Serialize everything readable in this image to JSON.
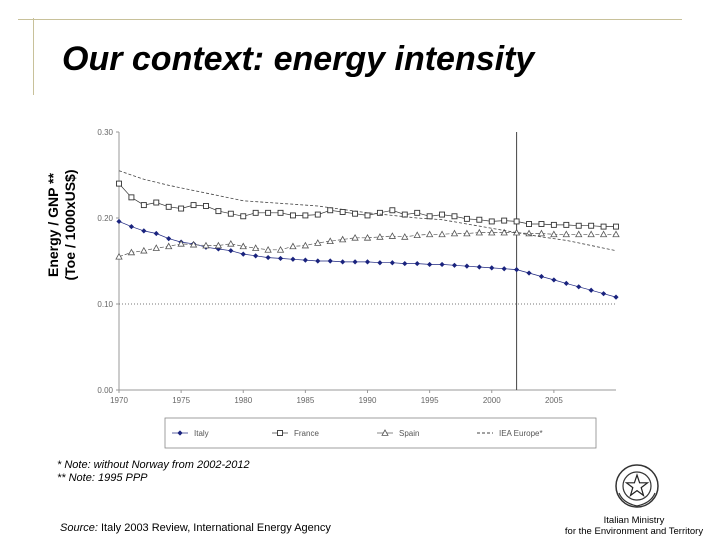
{
  "slide": {
    "title": "Our context: energy intensity",
    "ylabel_line1": "Energy / GNP **",
    "ylabel_line2": "(Toe / 1000xUS$)",
    "note1": "* Note: without Norway from 2002-2012",
    "note2": "** Note: 1995 PPP",
    "source_label": "Source:",
    "source_text": " Italy 2003 Review, International Energy Agency",
    "ministry_line1": "Italian Ministry",
    "ministry_line2": "for the Environment and Territory",
    "emblem_icon": "italian-republic-emblem-icon"
  },
  "chart_data": {
    "type": "line",
    "xlim": [
      1970,
      2010
    ],
    "ylim": [
      0.0,
      0.3
    ],
    "y_ticks": [
      "0.30",
      "0.20",
      "0.10",
      "0.00"
    ],
    "y_tick_values": [
      0.3,
      0.2,
      0.1,
      0.0
    ],
    "x_ticks": [
      "1970",
      "1975",
      "1980",
      "1985",
      "1990",
      "1995",
      "2000",
      "2005"
    ],
    "x_tick_values": [
      1970,
      1975,
      1980,
      1985,
      1990,
      1995,
      2000,
      2005
    ],
    "divider_year": 2002,
    "hline_dotted_at": 0.1,
    "grid": false,
    "legend_position": "bottom",
    "series": [
      {
        "name": "Italy",
        "marker": "diamond-filled",
        "color": "#1a237e",
        "x": [
          1970,
          1971,
          1972,
          1973,
          1974,
          1975,
          1976,
          1977,
          1978,
          1979,
          1980,
          1981,
          1982,
          1983,
          1984,
          1985,
          1986,
          1987,
          1988,
          1989,
          1990,
          1991,
          1992,
          1993,
          1994,
          1995,
          1996,
          1997,
          1998,
          1999,
          2000,
          2001,
          2002,
          2003,
          2004,
          2005,
          2006,
          2007,
          2008,
          2009,
          2010
        ],
        "values": [
          0.196,
          0.19,
          0.185,
          0.182,
          0.176,
          0.172,
          0.17,
          0.166,
          0.164,
          0.162,
          0.158,
          0.156,
          0.154,
          0.153,
          0.152,
          0.151,
          0.15,
          0.15,
          0.149,
          0.149,
          0.149,
          0.148,
          0.148,
          0.147,
          0.147,
          0.146,
          0.146,
          0.145,
          0.144,
          0.143,
          0.142,
          0.141,
          0.14,
          0.136,
          0.132,
          0.128,
          0.124,
          0.12,
          0.116,
          0.112,
          0.108
        ]
      },
      {
        "name": "France",
        "marker": "square-open",
        "color": "#333333",
        "x": [
          1970,
          1971,
          1972,
          1973,
          1974,
          1975,
          1976,
          1977,
          1978,
          1979,
          1980,
          1981,
          1982,
          1983,
          1984,
          1985,
          1986,
          1987,
          1988,
          1989,
          1990,
          1991,
          1992,
          1993,
          1994,
          1995,
          1996,
          1997,
          1998,
          1999,
          2000,
          2001,
          2002,
          2003,
          2004,
          2005,
          2006,
          2007,
          2008,
          2009,
          2010
        ],
        "values": [
          0.24,
          0.224,
          0.215,
          0.218,
          0.213,
          0.211,
          0.215,
          0.214,
          0.208,
          0.205,
          0.202,
          0.206,
          0.206,
          0.206,
          0.203,
          0.203,
          0.204,
          0.209,
          0.207,
          0.205,
          0.203,
          0.206,
          0.209,
          0.204,
          0.206,
          0.202,
          0.204,
          0.202,
          0.199,
          0.198,
          0.196,
          0.197,
          0.196,
          0.193,
          0.193,
          0.192,
          0.192,
          0.191,
          0.191,
          0.19,
          0.19
        ]
      },
      {
        "name": "Spain",
        "marker": "triangle-open",
        "color": "#555555",
        "x": [
          1970,
          1971,
          1972,
          1973,
          1974,
          1975,
          1976,
          1977,
          1978,
          1979,
          1980,
          1981,
          1982,
          1983,
          1984,
          1985,
          1986,
          1987,
          1988,
          1989,
          1990,
          1991,
          1992,
          1993,
          1994,
          1995,
          1996,
          1997,
          1998,
          1999,
          2000,
          2001,
          2002,
          2003,
          2004,
          2005,
          2006,
          2007,
          2008,
          2009,
          2010
        ],
        "values": [
          0.155,
          0.16,
          0.162,
          0.165,
          0.167,
          0.17,
          0.169,
          0.168,
          0.168,
          0.17,
          0.167,
          0.165,
          0.163,
          0.163,
          0.167,
          0.168,
          0.171,
          0.173,
          0.175,
          0.177,
          0.177,
          0.178,
          0.179,
          0.178,
          0.18,
          0.181,
          0.181,
          0.182,
          0.182,
          0.183,
          0.183,
          0.183,
          0.183,
          0.182,
          0.182,
          0.181,
          0.181,
          0.181,
          0.181,
          0.181,
          0.181
        ]
      },
      {
        "name": "IEA Europe*",
        "marker": "none",
        "color": "#444444",
        "x": [
          1970,
          1972,
          1974,
          1976,
          1978,
          1980,
          1982,
          1984,
          1986,
          1988,
          1990,
          1992,
          1994,
          1996,
          1998,
          2000,
          2002,
          2004,
          2006,
          2008,
          2010
        ],
        "values": [
          0.255,
          0.245,
          0.238,
          0.232,
          0.226,
          0.22,
          0.218,
          0.216,
          0.214,
          0.21,
          0.206,
          0.203,
          0.2,
          0.198,
          0.193,
          0.188,
          0.183,
          0.178,
          0.174,
          0.168,
          0.162
        ]
      }
    ]
  }
}
